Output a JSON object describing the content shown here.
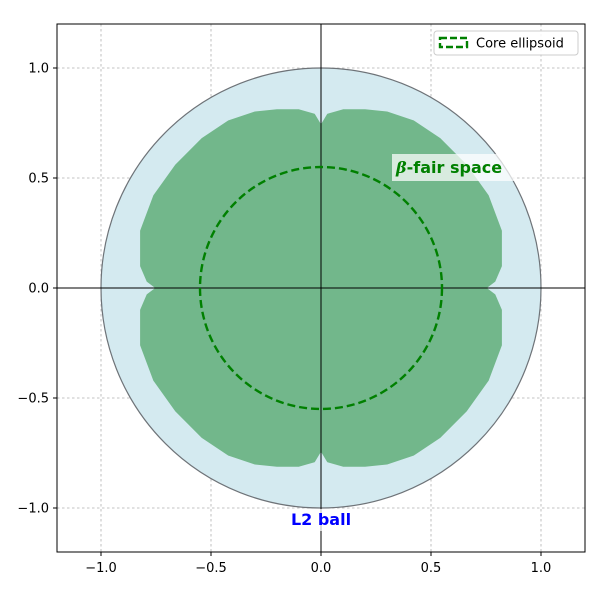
{
  "chart_data": {
    "type": "area",
    "title": "",
    "xlabel": "",
    "ylabel": "",
    "xlim": [
      -1.2,
      1.2
    ],
    "ylim": [
      -1.2,
      1.2
    ],
    "aspect": "equal",
    "grid": true,
    "x_ticks": [
      -1.0,
      -0.5,
      0.0,
      0.5,
      1.0
    ],
    "y_ticks": [
      -1.0,
      -0.5,
      0.0,
      0.5,
      1.0
    ],
    "x_tick_labels": [
      "−1.0",
      "−0.5",
      "0.0",
      "0.5",
      "1.0"
    ],
    "y_tick_labels": [
      "−1.0",
      "−0.5",
      "0.0",
      "0.5",
      "1.0"
    ],
    "regions": {
      "l2_ball": {
        "shape": "circle",
        "center": [
          0,
          0
        ],
        "radius": 1.0,
        "fill": "#d4eaf0",
        "edge": "#6e7378"
      },
      "fair_space": {
        "shape": "four-lobed region",
        "fill": "#72b78b",
        "boundary_points": [
          [
            0.0,
            0.74
          ],
          [
            0.03,
            0.79
          ],
          [
            0.1,
            0.81
          ],
          [
            0.2,
            0.81
          ],
          [
            0.3,
            0.8
          ],
          [
            0.42,
            0.76
          ],
          [
            0.54,
            0.68
          ],
          [
            0.66,
            0.56
          ],
          [
            0.76,
            0.42
          ],
          [
            0.82,
            0.26
          ],
          [
            0.82,
            0.1
          ],
          [
            0.79,
            0.03
          ],
          [
            0.75,
            0.0
          ]
        ],
        "symmetry": "mirrored across both axes"
      },
      "core_ellipsoid": {
        "shape": "circle",
        "center": [
          0,
          0
        ],
        "radius": 0.55,
        "line_style": "dashed",
        "color": "#008000"
      }
    },
    "legend": {
      "placement": "top-right",
      "entries": [
        "Core ellipsoid"
      ]
    },
    "annotations": {
      "fair": {
        "text_math": "β",
        "text_rest": "-fair space",
        "x": 0.35,
        "y": 0.55,
        "color": "#008000"
      },
      "l2": {
        "text": "L2 ball",
        "x": 0.0,
        "y": -1.05,
        "color": "#0000ff"
      }
    },
    "axis_lines": {
      "x": 0,
      "y": 0,
      "color": "#000000"
    }
  }
}
